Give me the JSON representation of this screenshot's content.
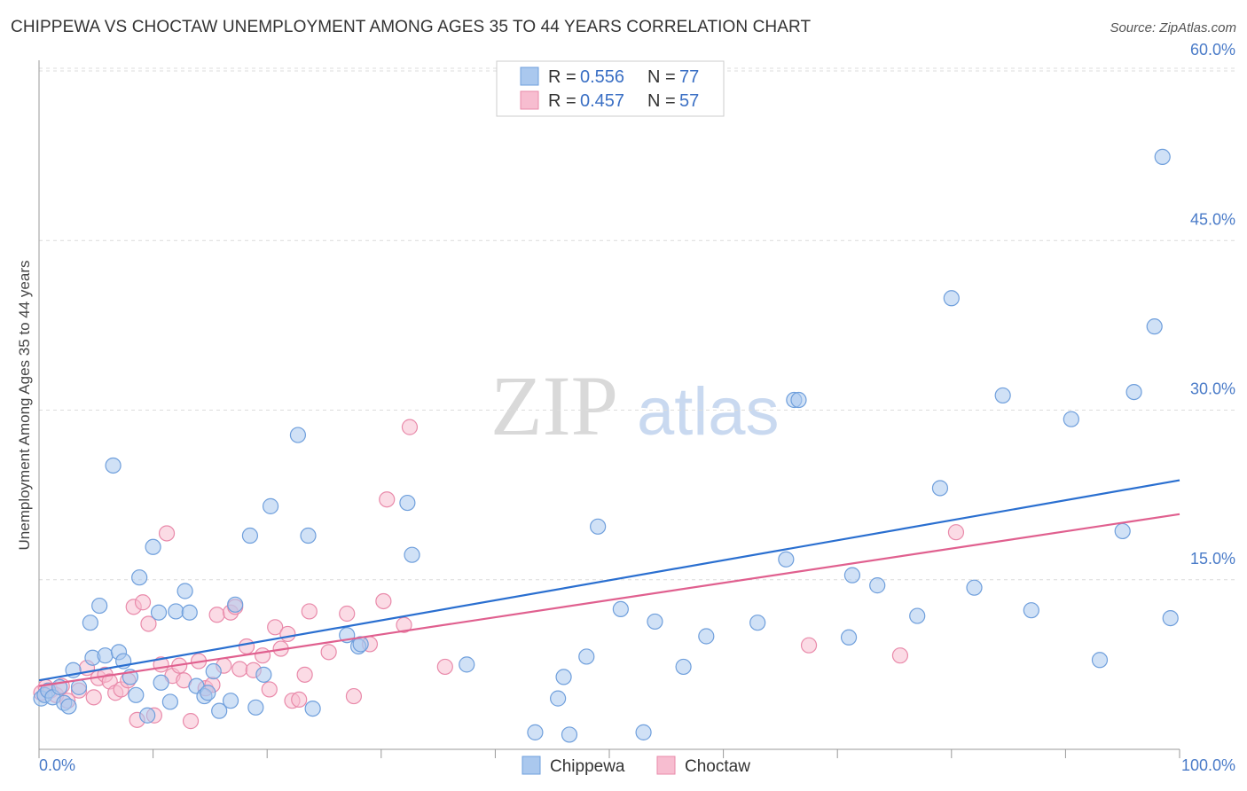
{
  "header": {
    "title": "CHIPPEWA VS CHOCTAW UNEMPLOYMENT AMONG AGES 35 TO 44 YEARS CORRELATION CHART",
    "source": "Source: ZipAtlas.com"
  },
  "watermark": {
    "zip": "ZIP",
    "atlas": "atlas"
  },
  "legend": {
    "rows": [
      {
        "r_label": "R = ",
        "r_value": "0.556",
        "n_label": "N = ",
        "n_value": "77"
      },
      {
        "r_label": "R = ",
        "r_value": "0.457",
        "n_label": "N = ",
        "n_value": "57"
      }
    ]
  },
  "chart_data": {
    "type": "scatter",
    "title": "CHIPPEWA VS CHOCTAW UNEMPLOYMENT AMONG AGES 35 TO 44 YEARS CORRELATION CHART",
    "xlabel": "",
    "ylabel": "Unemployment Among Ages 35 to 44 years",
    "xlim": [
      0,
      100
    ],
    "ylim": [
      0,
      60
    ],
    "x_tick_labels": [
      "0.0%",
      "100.0%"
    ],
    "y_ticks": [
      15,
      30,
      45,
      60
    ],
    "y_tick_labels": [
      "15.0%",
      "30.0%",
      "45.0%",
      "60.0%"
    ],
    "grid": true,
    "legend_position": "top-center",
    "colors": {
      "Chippewa": {
        "fill": "#aac8ee",
        "stroke": "#6f9fdc",
        "line": "#2a6fd0"
      },
      "Choctaw": {
        "fill": "#f7bdd0",
        "stroke": "#e98aaa",
        "line": "#e0608f"
      }
    },
    "series": [
      {
        "name": "Chippewa",
        "r": 0.556,
        "n": 77,
        "trend": {
          "x": [
            0,
            100
          ],
          "y": [
            6.1,
            23.8
          ]
        },
        "points": [
          [
            0.2,
            4.5
          ],
          [
            0.5,
            4.8
          ],
          [
            0.8,
            5.2
          ],
          [
            1.2,
            4.6
          ],
          [
            1.8,
            5.5
          ],
          [
            2.2,
            4.1
          ],
          [
            2.6,
            3.8
          ],
          [
            3.0,
            7.0
          ],
          [
            3.5,
            5.5
          ],
          [
            4.5,
            11.2
          ],
          [
            4.7,
            8.1
          ],
          [
            5.3,
            12.7
          ],
          [
            5.8,
            8.3
          ],
          [
            6.5,
            25.1
          ],
          [
            7.0,
            8.6
          ],
          [
            7.4,
            7.8
          ],
          [
            8.0,
            6.4
          ],
          [
            8.5,
            4.8
          ],
          [
            8.8,
            15.2
          ],
          [
            9.5,
            3.0
          ],
          [
            10.0,
            17.9
          ],
          [
            10.5,
            12.1
          ],
          [
            10.7,
            5.9
          ],
          [
            11.5,
            4.2
          ],
          [
            12.0,
            12.2
          ],
          [
            12.8,
            14.0
          ],
          [
            13.2,
            12.1
          ],
          [
            13.8,
            5.6
          ],
          [
            14.5,
            4.7
          ],
          [
            14.8,
            5.0
          ],
          [
            15.3,
            6.9
          ],
          [
            15.8,
            3.4
          ],
          [
            16.8,
            4.3
          ],
          [
            17.2,
            12.8
          ],
          [
            18.5,
            18.9
          ],
          [
            19.0,
            3.7
          ],
          [
            19.7,
            6.6
          ],
          [
            20.3,
            21.5
          ],
          [
            22.7,
            27.8
          ],
          [
            23.6,
            18.9
          ],
          [
            24.0,
            3.6
          ],
          [
            27.0,
            10.1
          ],
          [
            28.0,
            9.1
          ],
          [
            28.2,
            9.3
          ],
          [
            32.3,
            21.8
          ],
          [
            32.7,
            17.2
          ],
          [
            37.5,
            7.5
          ],
          [
            43.5,
            1.5
          ],
          [
            45.5,
            4.5
          ],
          [
            46.0,
            6.4
          ],
          [
            46.5,
            1.3
          ],
          [
            48.0,
            8.2
          ],
          [
            49.0,
            19.7
          ],
          [
            51.0,
            12.4
          ],
          [
            53.0,
            1.5
          ],
          [
            54.0,
            11.3
          ],
          [
            56.5,
            7.3
          ],
          [
            58.5,
            10.0
          ],
          [
            63.0,
            11.2
          ],
          [
            65.5,
            16.8
          ],
          [
            66.2,
            30.9
          ],
          [
            66.6,
            30.9
          ],
          [
            71.0,
            9.9
          ],
          [
            71.3,
            15.4
          ],
          [
            73.5,
            14.5
          ],
          [
            77.0,
            11.8
          ],
          [
            79.0,
            23.1
          ],
          [
            80.0,
            39.9
          ],
          [
            82.0,
            14.3
          ],
          [
            84.5,
            31.3
          ],
          [
            87.0,
            12.3
          ],
          [
            90.5,
            29.2
          ],
          [
            93.0,
            7.9
          ],
          [
            95.0,
            19.3
          ],
          [
            96.0,
            31.6
          ],
          [
            97.8,
            37.4
          ],
          [
            98.5,
            52.4
          ],
          [
            99.2,
            11.6
          ]
        ]
      },
      {
        "name": "Choctaw",
        "r": 0.457,
        "n": 57,
        "trend": {
          "x": [
            0,
            100
          ],
          "y": [
            5.6,
            20.8
          ]
        },
        "points": [
          [
            0.2,
            5.0
          ],
          [
            0.6,
            5.5
          ],
          [
            1.0,
            5.2
          ],
          [
            1.5,
            4.8
          ],
          [
            2.0,
            5.6
          ],
          [
            2.5,
            4.3
          ],
          [
            3.5,
            5.2
          ],
          [
            4.2,
            7.2
          ],
          [
            4.8,
            4.6
          ],
          [
            5.2,
            6.3
          ],
          [
            5.8,
            6.6
          ],
          [
            6.2,
            6.0
          ],
          [
            6.7,
            5.0
          ],
          [
            7.2,
            5.3
          ],
          [
            7.8,
            6.1
          ],
          [
            8.3,
            12.6
          ],
          [
            8.6,
            2.6
          ],
          [
            9.1,
            13.0
          ],
          [
            9.6,
            11.1
          ],
          [
            10.1,
            3.0
          ],
          [
            10.7,
            7.5
          ],
          [
            11.2,
            19.1
          ],
          [
            11.7,
            6.5
          ],
          [
            12.3,
            7.4
          ],
          [
            12.7,
            6.1
          ],
          [
            13.3,
            2.5
          ],
          [
            14.0,
            7.8
          ],
          [
            14.6,
            5.4
          ],
          [
            15.2,
            5.7
          ],
          [
            15.6,
            11.9
          ],
          [
            16.2,
            7.4
          ],
          [
            16.8,
            12.1
          ],
          [
            17.2,
            12.6
          ],
          [
            17.6,
            7.1
          ],
          [
            18.2,
            9.1
          ],
          [
            18.8,
            7.0
          ],
          [
            19.6,
            8.3
          ],
          [
            20.2,
            5.3
          ],
          [
            20.7,
            10.8
          ],
          [
            21.2,
            8.9
          ],
          [
            21.8,
            10.2
          ],
          [
            22.2,
            4.3
          ],
          [
            22.8,
            4.4
          ],
          [
            23.3,
            6.6
          ],
          [
            23.7,
            12.2
          ],
          [
            25.4,
            8.6
          ],
          [
            27.0,
            12.0
          ],
          [
            27.6,
            4.7
          ],
          [
            29.0,
            9.3
          ],
          [
            30.2,
            13.1
          ],
          [
            30.5,
            22.1
          ],
          [
            32.0,
            11.0
          ],
          [
            32.5,
            28.5
          ],
          [
            35.6,
            7.3
          ],
          [
            67.5,
            9.2
          ],
          [
            75.5,
            8.3
          ],
          [
            80.4,
            19.2
          ]
        ]
      }
    ]
  },
  "bottom_legend": {
    "items": [
      "Chippewa",
      "Choctaw"
    ]
  }
}
